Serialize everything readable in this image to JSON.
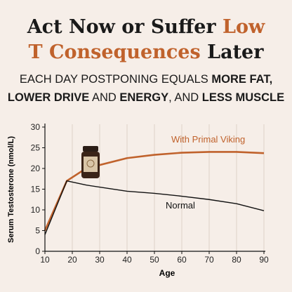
{
  "chart_data": {
    "type": "line",
    "title_lines": [
      [
        "Act Now or Suffer ",
        "Low"
      ],
      [
        "T Consequences",
        " Later"
      ]
    ],
    "title_colors": [
      "#1a1a1a",
      "#c0622c"
    ],
    "subtitle_lines": [
      [
        "EACH DAY POSTPONING EQUALS ",
        "MORE FAT,"
      ],
      [
        "LOWER DRIVE",
        " AND ",
        "ENERGY",
        ", AND ",
        "LESS MUSCLE"
      ]
    ],
    "x_label": "Age",
    "y_label": "Serum Testosterone (nmol/L)",
    "x": [
      10,
      18,
      25,
      40,
      50,
      60,
      70,
      80,
      90
    ],
    "series": [
      {
        "name": "With Primal Viking",
        "color": "#c0622c",
        "values": [
          5,
          17,
          20,
          22.5,
          23.3,
          23.8,
          24,
          24,
          23.7
        ]
      },
      {
        "name": "Normal",
        "color": "#111111",
        "values": [
          4,
          17,
          16,
          14.5,
          14,
          13.3,
          12.5,
          11.5,
          9.8
        ]
      }
    ],
    "xlim": [
      10,
      90
    ],
    "xticks": [
      10,
      20,
      30,
      40,
      50,
      60,
      70,
      80,
      90
    ],
    "ylim": [
      0,
      30
    ],
    "yticks": [
      0,
      5,
      10,
      15,
      20,
      25,
      30
    ],
    "grid": "x"
  }
}
